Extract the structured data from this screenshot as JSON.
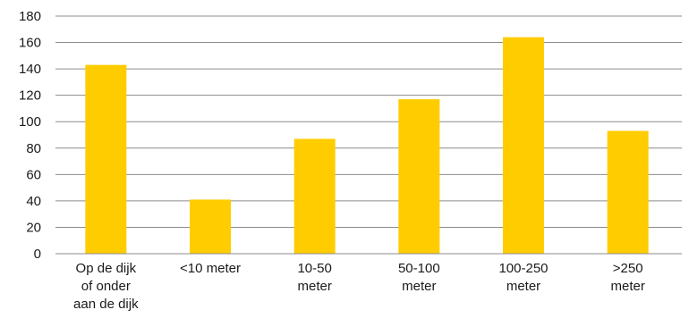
{
  "chart_data": {
    "type": "bar",
    "categories": [
      [
        "Op de dijk",
        "of onder",
        "aan de dijk"
      ],
      [
        "<10 meter"
      ],
      [
        "10-50",
        "meter"
      ],
      [
        "50-100",
        "meter"
      ],
      [
        "100-250",
        "meter"
      ],
      [
        ">250",
        "meter"
      ]
    ],
    "values": [
      143,
      41,
      87,
      117,
      164,
      93
    ],
    "ylim": [
      0,
      180
    ],
    "yticks": [
      0,
      20,
      40,
      60,
      80,
      100,
      120,
      140,
      160,
      180
    ],
    "grid": true,
    "bar_color": "#FFCC00",
    "title": "",
    "xlabel": "",
    "ylabel": ""
  }
}
